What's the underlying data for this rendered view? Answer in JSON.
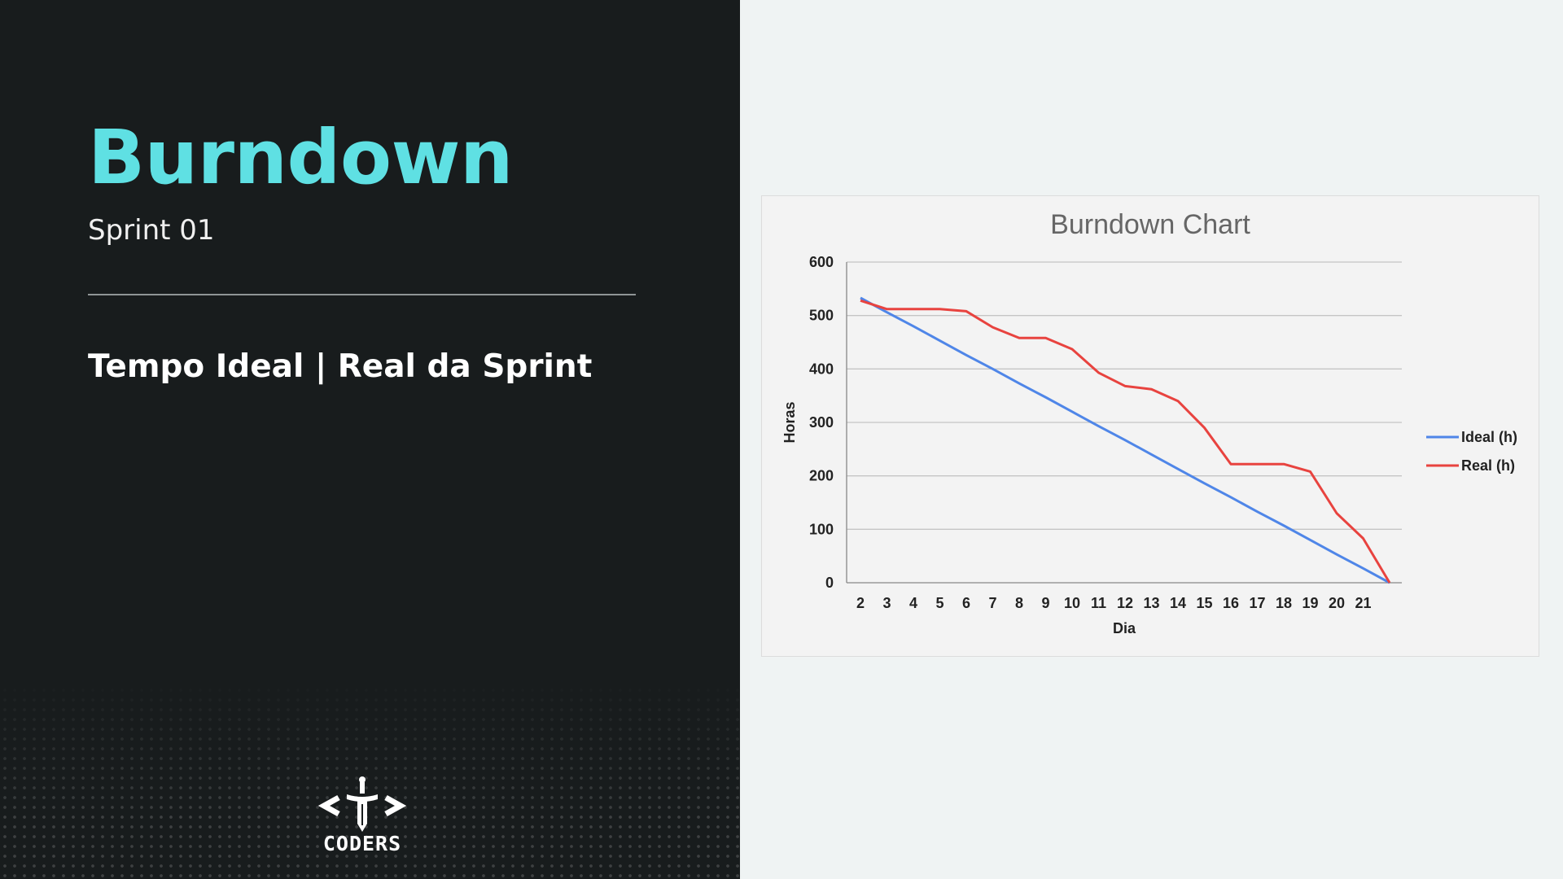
{
  "slide": {
    "title": "Burndown",
    "subtitle": "Sprint 01",
    "heading": "Tempo Ideal | Real da Sprint",
    "logo_text": "CODERS"
  },
  "colors": {
    "left_bg": "#181c1d",
    "right_bg": "#eff3f3",
    "title_accent": "#5fe0e3",
    "ideal_line": "#4f86e8",
    "real_line": "#e8433f"
  },
  "chart_data": {
    "type": "line",
    "title": "Burndown Chart",
    "xlabel": "Dia",
    "ylabel": "Horas",
    "categories": [
      "2",
      "3",
      "4",
      "5",
      "6",
      "7",
      "8",
      "9",
      "10",
      "11",
      "12",
      "13",
      "14",
      "15",
      "16",
      "17",
      "18",
      "19",
      "20",
      "21",
      ""
    ],
    "ylim": [
      0,
      600
    ],
    "yticks": [
      0,
      100,
      200,
      300,
      400,
      500,
      600
    ],
    "grid": true,
    "legend_position": "right",
    "series": [
      {
        "name": "Ideal (h)",
        "color": "#4f86e8",
        "values": [
          533,
          506,
          480,
          453,
          426,
          400,
          373,
          347,
          320,
          293,
          267,
          240,
          213,
          186,
          160,
          133,
          107,
          80,
          53,
          27,
          0
        ]
      },
      {
        "name": "Real (h)",
        "color": "#e8433f",
        "values": [
          528,
          512,
          512,
          512,
          508,
          478,
          458,
          458,
          437,
          393,
          368,
          362,
          340,
          290,
          222,
          222,
          222,
          208,
          130,
          83,
          0
        ]
      }
    ]
  }
}
